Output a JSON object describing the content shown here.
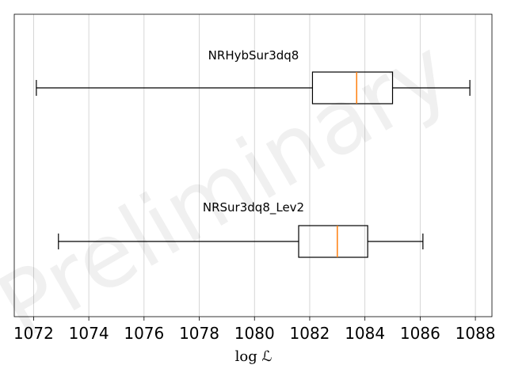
{
  "watermark": "Preliminary",
  "chart_data": {
    "type": "boxplot",
    "orientation": "horizontal",
    "xlabel": "log ℒ",
    "xlim": [
      1071.3,
      1088.6
    ],
    "xticks": [
      1072,
      1074,
      1076,
      1078,
      1080,
      1082,
      1084,
      1086,
      1088
    ],
    "grid": "x",
    "series": [
      {
        "name": "NRHybSur3dq8",
        "whisker_low": 1072.1,
        "q1": 1082.1,
        "median": 1083.7,
        "q3": 1085.0,
        "whisker_high": 1087.8
      },
      {
        "name": "NRSur3dq8_Lev2",
        "whisker_low": 1072.9,
        "q1": 1081.6,
        "median": 1083.0,
        "q3": 1084.1,
        "whisker_high": 1086.1
      }
    ],
    "colors": {
      "box": "#000000",
      "median": "#ff7f0e",
      "grid": "#cccccc"
    }
  }
}
